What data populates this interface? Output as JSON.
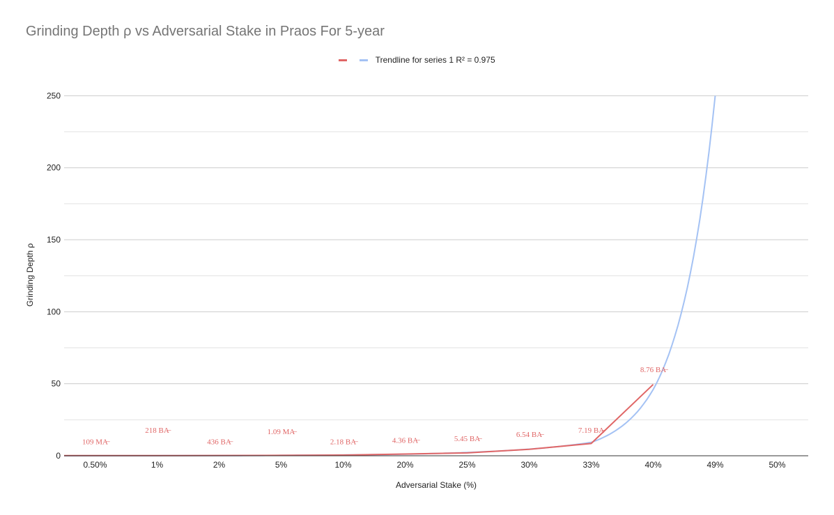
{
  "chart_data": {
    "type": "line",
    "title": "Grinding Depth ρ vs Adversarial Stake in Praos For 5-year",
    "xlabel": "Adversarial Stake (%)",
    "ylabel": "Grinding  Depth ρ",
    "categories": [
      "0.50%",
      "1%",
      "2%",
      "5%",
      "10%",
      "20%",
      "25%",
      "30%",
      "33%",
      "40%",
      "49%",
      "50%"
    ],
    "ylim": [
      0,
      256
    ],
    "yticks": [
      0,
      50,
      100,
      150,
      200,
      250
    ],
    "grid": true,
    "legend_position": "top",
    "series": [
      {
        "name": "",
        "color": "#e06666",
        "values": [
          0.1,
          0.1,
          0.2,
          0.3,
          0.5,
          1.2,
          2.0,
          4.5,
          8.5,
          49.5,
          null,
          null
        ]
      }
    ],
    "trendline": {
      "name": "Trendline for series 1 R² = 0.975",
      "color": "#a4c2f4",
      "values": [
        0.03,
        0.07,
        0.13,
        0.27,
        0.55,
        1.1,
        2.3,
        4.6,
        9.3,
        46,
        250
      ]
    },
    "data_labels": [
      {
        "category": "0.50%",
        "text": "109 MA̶",
        "y": 10
      },
      {
        "category": "1%",
        "text": "218 BA̶",
        "y": 18
      },
      {
        "category": "2%",
        "text": "436 BA̶",
        "y": 10
      },
      {
        "category": "5%",
        "text": "1.09 MA̶",
        "y": 17
      },
      {
        "category": "10%",
        "text": "2.18 BA̶",
        "y": 10
      },
      {
        "category": "20%",
        "text": "4.36 BA̶",
        "y": 11
      },
      {
        "category": "25%",
        "text": "5.45 BA̶",
        "y": 12
      },
      {
        "category": "30%",
        "text": "6.54 BA̶",
        "y": 15
      },
      {
        "category": "33%",
        "text": "7.19 BA̶",
        "y": 18
      },
      {
        "category": "40%",
        "text": "8.76 BA̶",
        "y": 60
      }
    ]
  }
}
